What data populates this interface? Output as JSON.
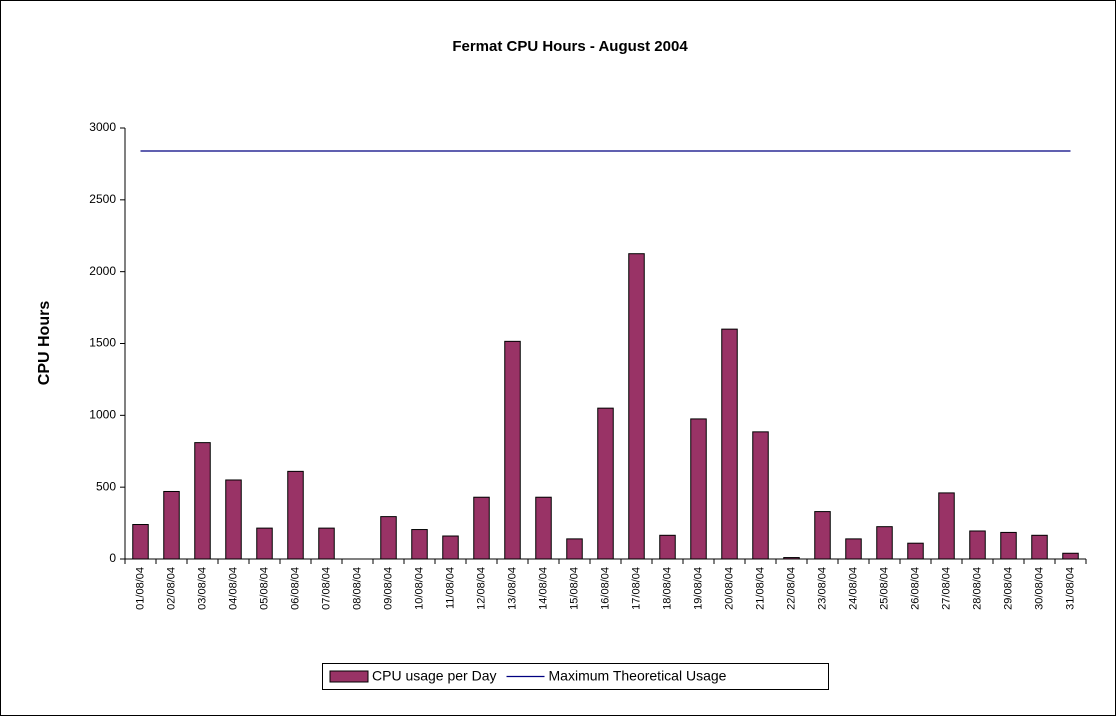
{
  "chart_data": {
    "type": "bar",
    "title": "Fermat CPU Hours - August  2004",
    "y_label": "CPU Hours",
    "categories": [
      "01/08/04",
      "02/08/04",
      "03/08/04",
      "04/08/04",
      "05/08/04",
      "06/08/04",
      "07/08/04",
      "08/08/04",
      "09/08/04",
      "10/08/04",
      "11/08/04",
      "12/08/04",
      "13/08/04",
      "14/08/04",
      "15/08/04",
      "16/08/04",
      "17/08/04",
      "18/08/04",
      "19/08/04",
      "20/08/04",
      "21/08/04",
      "22/08/04",
      "23/08/04",
      "24/08/04",
      "25/08/04",
      "26/08/04",
      "27/08/04",
      "28/08/04",
      "29/08/04",
      "30/08/04",
      "31/08/04"
    ],
    "series": [
      {
        "name": "CPU usage per Day",
        "type": "bar",
        "color": "#993366",
        "values": [
          240,
          470,
          810,
          550,
          215,
          610,
          215,
          0,
          295,
          205,
          160,
          430,
          1515,
          430,
          140,
          1050,
          2125,
          165,
          975,
          1600,
          885,
          10,
          330,
          140,
          225,
          110,
          460,
          195,
          185,
          165,
          40
        ]
      },
      {
        "name": "Maximum Theoretical Usage",
        "type": "line",
        "color": "#000080",
        "values": [
          2840,
          2840,
          2840,
          2840,
          2840,
          2840,
          2840,
          2840,
          2840,
          2840,
          2840,
          2840,
          2840,
          2840,
          2840,
          2840,
          2840,
          2840,
          2840,
          2840,
          2840,
          2840,
          2840,
          2840,
          2840,
          2840,
          2840,
          2840,
          2840,
          2840,
          2840
        ]
      }
    ],
    "ylim": [
      0,
      3000
    ],
    "yticks": [
      0,
      500,
      1000,
      1500,
      2000,
      2500,
      3000
    ],
    "grid": false,
    "legend": "bottom"
  }
}
